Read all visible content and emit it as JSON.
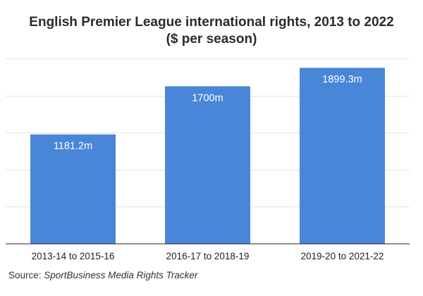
{
  "header": {
    "title_line1": "English Premier League international rights, 2013 to 2022",
    "title_line2": "($ per season)"
  },
  "chart_data": {
    "type": "bar",
    "categories": [
      "2013-14 to 2015-16",
      "2016-17 to 2018-19",
      "2019-20 to 2021-22"
    ],
    "values": [
      1181.2,
      1700,
      1899.3
    ],
    "data_labels": [
      "1181.2m",
      "1700m",
      "1899.3m"
    ],
    "title": "English Premier League international rights, 2013 to 2022",
    "subtitle": "($ per season)",
    "xlabel": "",
    "ylabel": "",
    "ylim": [
      0,
      2000
    ],
    "grid": true,
    "y_tick_labels_shown": false,
    "bar_color": "#4a86d8",
    "label_color": "#ffffff"
  },
  "footer": {
    "source_prefix": "Source: ",
    "source_name": "SportBusiness Media Rights Tracker"
  }
}
